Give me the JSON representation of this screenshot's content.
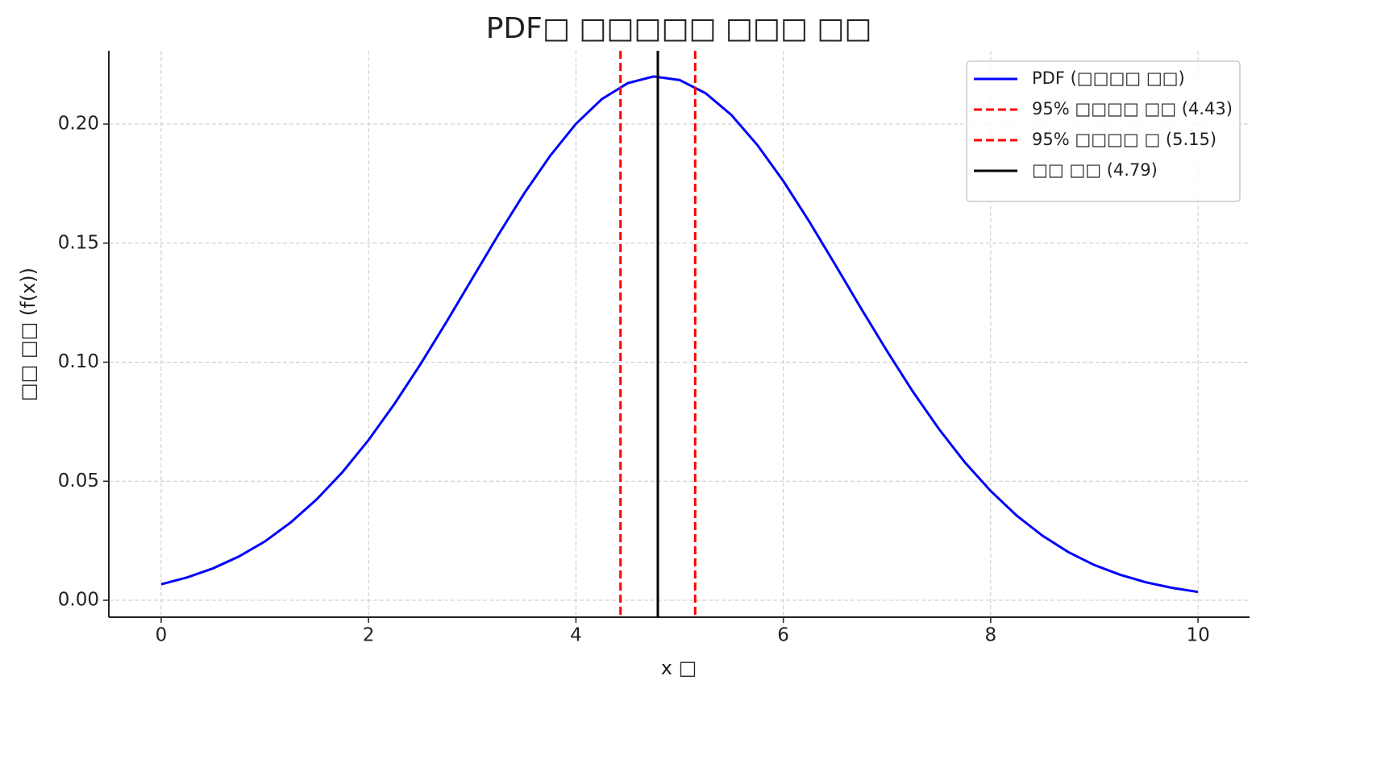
{
  "chart_data": {
    "type": "line",
    "title": "PDF□ □□□□□ □□□ □□",
    "xlabel": "x □",
    "ylabel": "□□ □□ (f(x))",
    "x": [
      0,
      0.25,
      0.5,
      0.75,
      1,
      1.25,
      1.5,
      1.75,
      2,
      2.25,
      2.5,
      2.75,
      3,
      3.25,
      3.5,
      3.75,
      4,
      4.25,
      4.5,
      4.75,
      5,
      5.25,
      5.5,
      5.75,
      6,
      6.25,
      6.5,
      6.75,
      7,
      7.25,
      7.5,
      7.75,
      8,
      8.25,
      8.5,
      8.75,
      9,
      9.25,
      9.5,
      9.75,
      10
    ],
    "series": [
      {
        "name": "PDF (□□□□ □□)",
        "color": "#0000ff",
        "values": [
          0.0067,
          0.0096,
          0.0134,
          0.0184,
          0.0247,
          0.0327,
          0.0424,
          0.0539,
          0.0673,
          0.0825,
          0.0991,
          0.1168,
          0.1351,
          0.1534,
          0.1708,
          0.1866,
          0.2001,
          0.2105,
          0.2172,
          0.22,
          0.2185,
          0.213,
          0.2038,
          0.1912,
          0.1761,
          0.1591,
          0.141,
          0.1226,
          0.1047,
          0.0876,
          0.072,
          0.058,
          0.0459,
          0.0356,
          0.0271,
          0.0202,
          0.0148,
          0.0107,
          0.0075,
          0.0052,
          0.0035
        ]
      }
    ],
    "vlines": [
      {
        "name": "95% □□□□ □□ (4.43)",
        "x": 4.43,
        "color": "#ff0000",
        "dashed": true
      },
      {
        "name": "95% □□□□ □ (5.15)",
        "x": 5.15,
        "color": "#ff0000",
        "dashed": true
      },
      {
        "name": "□□ □□ (4.79)",
        "x": 4.79,
        "color": "#000000",
        "dashed": false
      }
    ],
    "xlim": [
      -0.505,
      10.497
    ],
    "ylim": [
      -0.0071,
      0.2308
    ],
    "xticks": [
      0,
      2,
      4,
      6,
      8,
      10
    ],
    "yticks": [
      {
        "value": 0,
        "label": "0.00"
      },
      {
        "value": 0.05,
        "label": "0.05"
      },
      {
        "value": 0.1,
        "label": "0.10"
      },
      {
        "value": 0.15,
        "label": "0.15"
      },
      {
        "value": 0.2,
        "label": "0.20"
      }
    ],
    "grid": true,
    "legend": "upper right"
  }
}
